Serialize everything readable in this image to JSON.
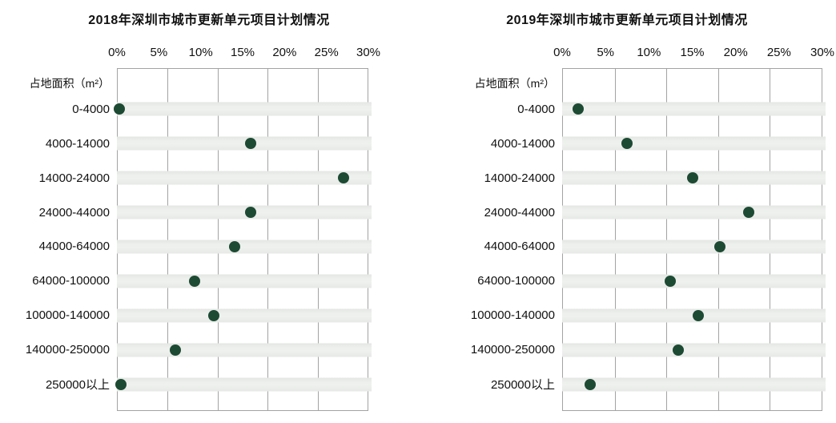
{
  "colors": {
    "dot": "#1d4a33",
    "band": "#e9ebe9",
    "gridline": "#a3a3a3",
    "text": "#111111",
    "background": "#ffffff"
  },
  "chart_data": [
    {
      "type": "scatter",
      "title": "2018年深圳市城市更新单元项目计划情况",
      "ylabel": "占地面积（m²）",
      "x_ticks": [
        "0%",
        "5%",
        "10%",
        "15%",
        "20%",
        "25%",
        "30%"
      ],
      "xlim": [
        0,
        30
      ],
      "unit": "%",
      "grid": "6 vertical gridlines, horizontal gray bands per row",
      "legend": "none",
      "categories": [
        "0-4000",
        "4000-14000",
        "14000-24000",
        "24000-44000",
        "44000-64000",
        "64000-100000",
        "100000-140000",
        "140000-250000",
        "250000以上"
      ],
      "values": [
        0.3,
        16,
        27,
        16,
        14,
        9.3,
        11.6,
        7,
        0.5
      ]
    },
    {
      "type": "scatter",
      "title": "2019年深圳市城市更新单元项目计划情况",
      "ylabel": "占地面积（m²）",
      "x_ticks": [
        "0%",
        "5%",
        "10%",
        "15%",
        "20%",
        "25%",
        "30%"
      ],
      "xlim": [
        0,
        30
      ],
      "unit": "%",
      "grid": "6 vertical gridlines, horizontal gray bands per row",
      "legend": "none",
      "categories": [
        "0-4000",
        "4000-14000",
        "14000-24000",
        "24000-44000",
        "44000-64000",
        "64000-100000",
        "100000-140000",
        "140000-250000",
        "250000以上"
      ],
      "values": [
        1.8,
        7.5,
        15,
        21.5,
        18.2,
        12.5,
        15.7,
        13.4,
        3.2
      ]
    }
  ]
}
